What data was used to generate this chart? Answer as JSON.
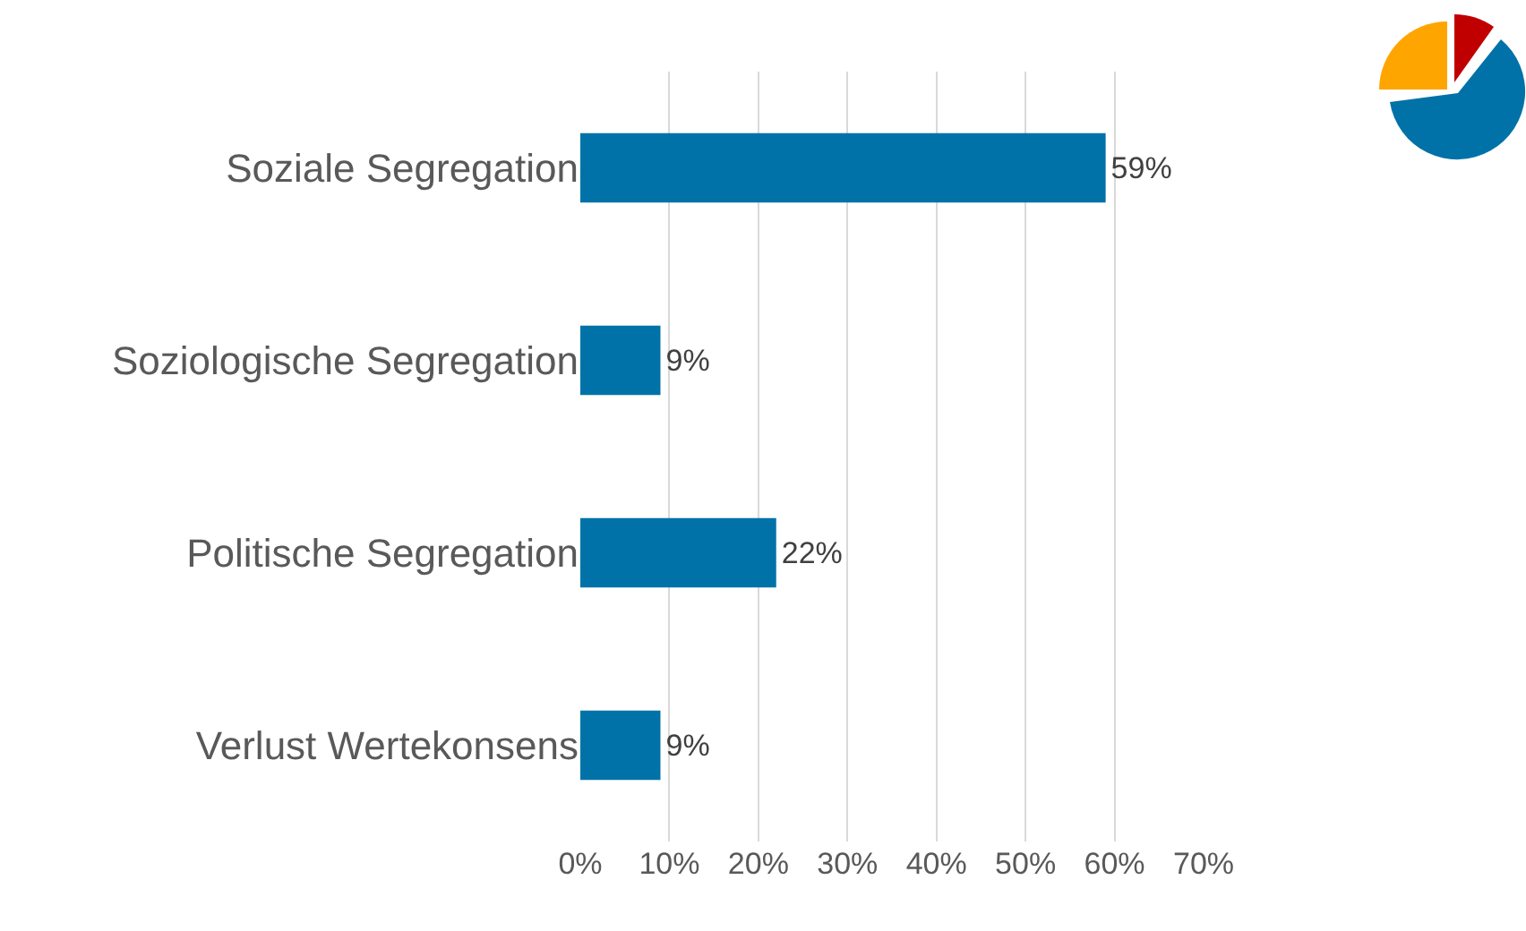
{
  "chart_data": {
    "type": "bar",
    "orientation": "horizontal",
    "categories": [
      "Soziale Segregation",
      "Soziologische Segregation",
      "Politische Segregation",
      "Verlust Wertekonsens"
    ],
    "values": [
      59,
      9,
      22,
      9
    ],
    "color": "#0072a8",
    "xlim": [
      0,
      70
    ],
    "xticks": [
      {
        "value": 0,
        "label": "0%"
      },
      {
        "value": 10,
        "label": "10%"
      },
      {
        "value": 20,
        "label": "20%"
      },
      {
        "value": 30,
        "label": "30%"
      },
      {
        "value": 40,
        "label": "40%"
      },
      {
        "value": 50,
        "label": "50%"
      },
      {
        "value": 60,
        "label": "60%"
      },
      {
        "value": 70,
        "label": "70%"
      }
    ],
    "grid": "x",
    "value_labels": [
      "59%",
      "9%",
      "22%",
      "9%"
    ]
  }
}
